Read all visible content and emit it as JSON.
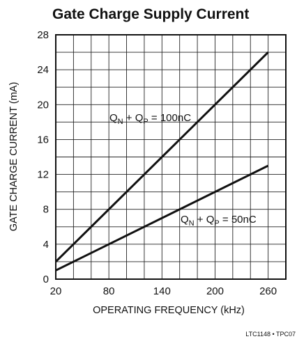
{
  "chart_data": {
    "type": "line",
    "title": "Gate Charge Supply Current",
    "xlabel": "OPERATING FREQUENCY (kHz)",
    "ylabel": "GATE CHARGE CURRENT (mA)",
    "xlim": [
      20,
      280
    ],
    "ylim": [
      0,
      28
    ],
    "x_ticks": [
      20,
      80,
      140,
      200,
      260
    ],
    "y_ticks": [
      0,
      4,
      8,
      12,
      16,
      20,
      24,
      28
    ],
    "grid": true,
    "series": [
      {
        "label_main": "Q",
        "label_sub1": "N",
        "label_mid": " + Q",
        "label_sub2": "P",
        "label_end": " = 100nC",
        "x": [
          20,
          260
        ],
        "y": [
          2,
          26
        ]
      },
      {
        "label_main": "Q",
        "label_sub1": "N",
        "label_mid": " + Q",
        "label_sub2": "P",
        "label_end": " = 50nC",
        "x": [
          20,
          260
        ],
        "y": [
          1,
          13
        ]
      }
    ],
    "footer": "LTC1148 • TPC07"
  }
}
